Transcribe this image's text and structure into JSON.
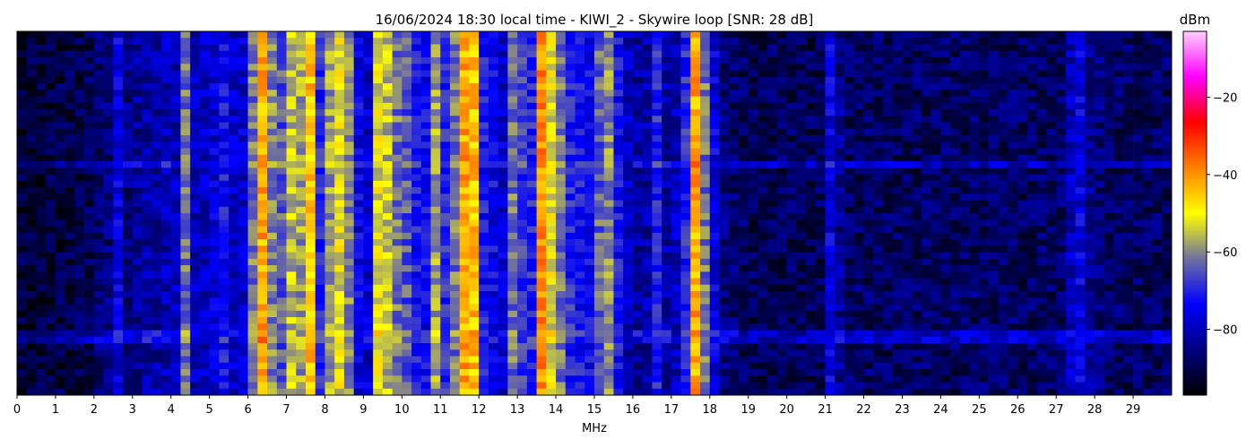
{
  "chart_data": {
    "type": "heatmap",
    "title": "16/06/2024 18:30 local time - KIWI_2 - Skywire loop [SNR: 28 dB]",
    "xlabel": "MHz",
    "ylabel": "",
    "xlim": [
      0,
      30
    ],
    "x_ticks": [
      "0",
      "1",
      "2",
      "3",
      "4",
      "5",
      "6",
      "7",
      "8",
      "9",
      "10",
      "11",
      "12",
      "13",
      "14",
      "15",
      "16",
      "17",
      "18",
      "19",
      "20",
      "21",
      "22",
      "23",
      "24",
      "25",
      "26",
      "27",
      "28",
      "29"
    ],
    "colorbar": {
      "label": "dBm",
      "range": [
        -97,
        -3
      ],
      "ticks": [
        "−20",
        "−40",
        "−60",
        "−80"
      ],
      "tick_values": [
        -20,
        -40,
        -60,
        -80
      ],
      "colormap_stops": [
        "#000000",
        "#000080",
        "#0000ff",
        "#7070a0",
        "#ffff00",
        "#ff8000",
        "#ff0000",
        "#ff00ff",
        "#ffd0ff"
      ]
    },
    "frequency_bin_MHz": 0.25,
    "mean_level_dBm": [
      -92,
      -92,
      -92,
      -91,
      -91,
      -90,
      -90,
      -89,
      -87,
      -86,
      -76,
      -85,
      -83,
      -82,
      -82,
      -81,
      -80,
      -62,
      -80,
      -79,
      -77,
      -72,
      -79,
      -78,
      -62,
      -42,
      -60,
      -65,
      -55,
      -58,
      -45,
      -70,
      -58,
      -52,
      -60,
      -75,
      -78,
      -52,
      -55,
      -62,
      -65,
      -72,
      -74,
      -58,
      -70,
      -62,
      -42,
      -45,
      -72,
      -74,
      -78,
      -62,
      -68,
      -70,
      -40,
      -52,
      -62,
      -70,
      -72,
      -74,
      -64,
      -60,
      -72,
      -80,
      -83,
      -82,
      -70,
      -82,
      -80,
      -70,
      -42,
      -62,
      -76,
      -86,
      -87,
      -88,
      -89,
      -89,
      -89,
      -89,
      -89,
      -89,
      -89,
      -89,
      -76,
      -84,
      -88,
      -88,
      -88,
      -88,
      -88,
      -88,
      -88,
      -88,
      -88,
      -88,
      -88,
      -88,
      -88,
      -88,
      -88,
      -88,
      -88,
      -88,
      -88,
      -88,
      -88,
      -88,
      -88,
      -80,
      -76,
      -84,
      -86,
      -88,
      -88,
      -88,
      -88,
      -88,
      -88,
      -88
    ]
  }
}
